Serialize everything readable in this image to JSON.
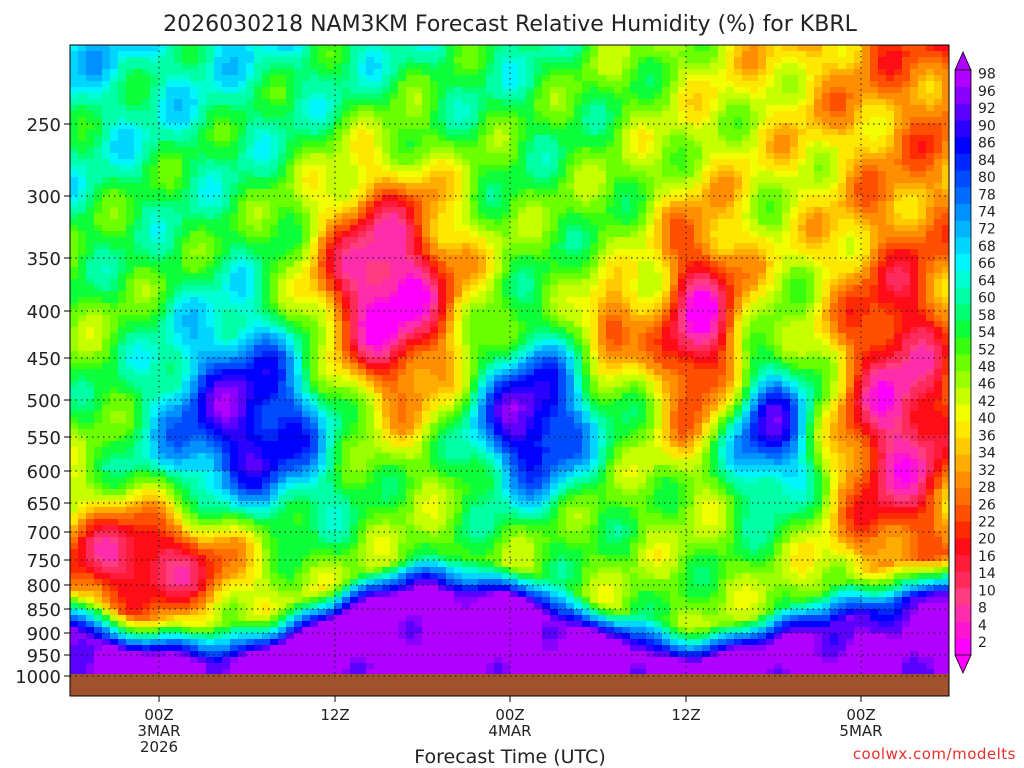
{
  "chart_data": {
    "type": "heatmap",
    "title": "2026030218 NAM3KM Forecast Relative Humidity (%) for KBRL",
    "xlabel": "Forecast Time (UTC)",
    "ylabel": "",
    "y_ticks": [
      "250",
      "300",
      "350",
      "400",
      "450",
      "500",
      "550",
      "600",
      "650",
      "700",
      "750",
      "800",
      "850",
      "900",
      "950",
      "1000"
    ],
    "x_ticks": [
      {
        "hour": "00Z",
        "date": "3MAR",
        "year": "2026"
      },
      {
        "hour": "12Z",
        "date": "",
        "year": ""
      },
      {
        "hour": "00Z",
        "date": "4MAR",
        "year": ""
      },
      {
        "hour": "12Z",
        "date": "",
        "year": ""
      },
      {
        "hour": "00Z",
        "date": "5MAR",
        "year": ""
      }
    ],
    "colorbar_levels": [
      "2",
      "4",
      "8",
      "10",
      "14",
      "16",
      "20",
      "22",
      "26",
      "28",
      "32",
      "34",
      "36",
      "40",
      "42",
      "46",
      "48",
      "52",
      "54",
      "58",
      "60",
      "64",
      "66",
      "68",
      "72",
      "74",
      "78",
      "80",
      "84",
      "86",
      "90",
      "92",
      "96",
      "98"
    ],
    "colorbar_colors": [
      "#ff00ff",
      "#ff14d2",
      "#ff2cac",
      "#ff3c82",
      "#ff2a5c",
      "#ff1b39",
      "#ff0d17",
      "#ff2b00",
      "#ff4f00",
      "#ff7000",
      "#ff8f00",
      "#ffad00",
      "#ffcb00",
      "#ffe800",
      "#f2ff00",
      "#c8ff00",
      "#9cff00",
      "#6cff00",
      "#38ff10",
      "#0cff3a",
      "#00ff72",
      "#00ffa6",
      "#00ffd2",
      "#00f6ff",
      "#00d6ff",
      "#00b4ff",
      "#0090ff",
      "#006cff",
      "#004aff",
      "#0026ff",
      "#0000ff",
      "#2a00ff",
      "#5a00ff",
      "#8a00ff",
      "#b000ff"
    ],
    "grid": true,
    "ground_color": "#a0522d",
    "credit": "coolwx.com/modelts"
  }
}
